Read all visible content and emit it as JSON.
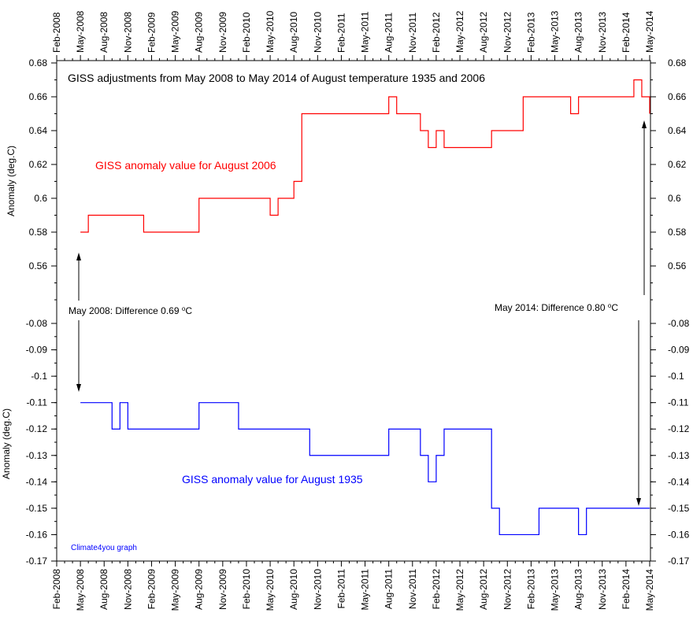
{
  "chart_data": [
    {
      "type": "line",
      "title": "GISS adjustments from May 2008 to May 2014 of August temperature 1935 and 2006",
      "ylabel": "Anomaly (deg.C)",
      "ylim": [
        0.54,
        0.68
      ],
      "yticks": [
        "0.56",
        "0.58",
        "0.6",
        "0.62",
        "0.64",
        "0.66",
        "0.68"
      ],
      "series": [
        {
          "name": "GISS anomaly value for August 2006",
          "color": "#ff0000",
          "x": [
            "2008-05",
            "2008-06",
            "2008-09",
            "2008-10",
            "2008-11",
            "2008-12",
            "2009-01",
            "2009-02",
            "2009-03",
            "2009-04",
            "2009-05",
            "2009-06",
            "2009-07",
            "2009-08",
            "2009-09",
            "2009-10",
            "2009-11",
            "2009-12",
            "2010-01",
            "2010-02",
            "2010-03",
            "2010-04",
            "2010-05",
            "2010-06",
            "2010-07",
            "2010-08",
            "2010-09",
            "2010-10",
            "2010-11",
            "2010-12",
            "2011-01",
            "2011-02",
            "2011-03",
            "2011-04",
            "2011-05",
            "2011-06",
            "2011-07",
            "2011-08",
            "2011-09",
            "2011-10",
            "2011-11",
            "2011-12",
            "2012-01",
            "2012-02",
            "2012-03",
            "2012-04",
            "2012-05",
            "2012-06",
            "2012-07",
            "2012-08",
            "2012-09",
            "2012-10",
            "2012-11",
            "2012-12",
            "2013-01",
            "2013-02",
            "2013-03",
            "2013-04",
            "2013-05",
            "2013-06",
            "2013-07",
            "2013-08",
            "2013-09",
            "2013-10",
            "2013-11",
            "2013-12",
            "2014-01",
            "2014-02",
            "2014-03",
            "2014-04",
            "2014-05"
          ],
          "values": [
            0.58,
            0.59,
            0.59,
            0.59,
            0.59,
            0.59,
            0.58,
            0.58,
            0.58,
            0.58,
            0.58,
            0.58,
            0.58,
            0.6,
            0.6,
            0.6,
            0.6,
            0.6,
            0.6,
            0.6,
            0.6,
            0.6,
            0.59,
            0.6,
            0.6,
            0.61,
            0.65,
            0.65,
            0.65,
            0.65,
            0.65,
            0.65,
            0.65,
            0.65,
            0.65,
            0.65,
            0.65,
            0.66,
            0.65,
            0.65,
            0.65,
            0.64,
            0.63,
            0.64,
            0.63,
            0.63,
            0.63,
            0.63,
            0.63,
            0.63,
            0.64,
            0.64,
            0.64,
            0.64,
            0.66,
            0.66,
            0.66,
            0.66,
            0.66,
            0.66,
            0.65,
            0.66,
            0.66,
            0.66,
            0.66,
            0.66,
            0.66,
            0.66,
            0.67,
            0.66,
            0.65
          ]
        }
      ],
      "annotations": [
        {
          "text": "GISS anomaly value for August 2006",
          "color": "#ff0000"
        }
      ]
    },
    {
      "type": "line",
      "ylabel": "Anomaly (deg.C)",
      "ylim": [
        -0.17,
        -0.08
      ],
      "yticks": [
        "-0.08",
        "-0.09",
        "-0.1",
        "-0.11",
        "-0.12",
        "-0.13",
        "-0.14",
        "-0.15",
        "-0.16",
        "-0.17"
      ],
      "series": [
        {
          "name": "GISS anomaly value for August 1935",
          "color": "#0000ff",
          "x": [
            "2008-05",
            "2008-06",
            "2008-07",
            "2008-08",
            "2008-09",
            "2008-10",
            "2008-11",
            "2008-12",
            "2009-01",
            "2009-02",
            "2009-03",
            "2009-04",
            "2009-05",
            "2009-06",
            "2009-07",
            "2009-08",
            "2009-09",
            "2009-10",
            "2009-11",
            "2009-12",
            "2010-01",
            "2010-02",
            "2010-03",
            "2010-04",
            "2010-05",
            "2010-06",
            "2010-07",
            "2010-08",
            "2010-09",
            "2010-10",
            "2010-11",
            "2010-12",
            "2011-01",
            "2011-02",
            "2011-03",
            "2011-04",
            "2011-05",
            "2011-06",
            "2011-07",
            "2011-08",
            "2011-09",
            "2011-10",
            "2011-11",
            "2011-12",
            "2012-01",
            "2012-02",
            "2012-03",
            "2012-04",
            "2012-05",
            "2012-06",
            "2012-07",
            "2012-08",
            "2012-09",
            "2012-10",
            "2012-11",
            "2012-12",
            "2013-01",
            "2013-02",
            "2013-03",
            "2013-04",
            "2013-05",
            "2013-06",
            "2013-07",
            "2013-08",
            "2013-09",
            "2013-10",
            "2013-11",
            "2013-12",
            "2014-01",
            "2014-02",
            "2014-03",
            "2014-04",
            "2014-05"
          ],
          "values": [
            -0.11,
            -0.11,
            -0.11,
            -0.11,
            -0.12,
            -0.11,
            -0.12,
            -0.12,
            -0.12,
            -0.12,
            -0.12,
            -0.12,
            -0.12,
            -0.12,
            -0.12,
            -0.11,
            -0.11,
            -0.11,
            -0.11,
            -0.11,
            -0.12,
            -0.12,
            -0.12,
            -0.12,
            -0.12,
            -0.12,
            -0.12,
            -0.12,
            -0.12,
            -0.13,
            -0.13,
            -0.13,
            -0.13,
            -0.13,
            -0.13,
            -0.13,
            -0.13,
            -0.13,
            -0.13,
            -0.12,
            -0.12,
            -0.12,
            -0.12,
            -0.13,
            -0.14,
            -0.13,
            -0.12,
            -0.12,
            -0.12,
            -0.12,
            -0.12,
            -0.12,
            -0.15,
            -0.16,
            -0.16,
            -0.16,
            -0.16,
            -0.16,
            -0.15,
            -0.15,
            -0.15,
            -0.15,
            -0.15,
            -0.16,
            -0.15,
            -0.15,
            -0.15,
            -0.15,
            -0.15,
            -0.15,
            -0.15,
            -0.15,
            -0.15
          ]
        }
      ],
      "annotations": [
        {
          "text": "GISS anomaly value for August 1935",
          "color": "#0000ff"
        }
      ]
    }
  ],
  "xaxis": {
    "start": "2008-02",
    "end": "2014-05",
    "tick_labels": [
      "Feb-2008",
      "May-2008",
      "Aug-2008",
      "Nov-2008",
      "Feb-2009",
      "May-2009",
      "Aug-2009",
      "Nov-2009",
      "Feb-2010",
      "May-2010",
      "Aug-2010",
      "Nov-2010",
      "Feb-2011",
      "May-2011",
      "Aug-2011",
      "Nov-2011",
      "Feb-2012",
      "May-2012",
      "Aug-2012",
      "Nov-2012",
      "Feb-2013",
      "May-2013",
      "Aug-2013",
      "Nov-2013",
      "Feb-2014",
      "May-2014"
    ]
  },
  "difference_labels": {
    "left": "May 2008: Difference 0.69 ",
    "right": "May 2014: Difference 0.80 ",
    "unit_sup": "o",
    "unit": "C"
  },
  "credit": "Climate4you graph"
}
